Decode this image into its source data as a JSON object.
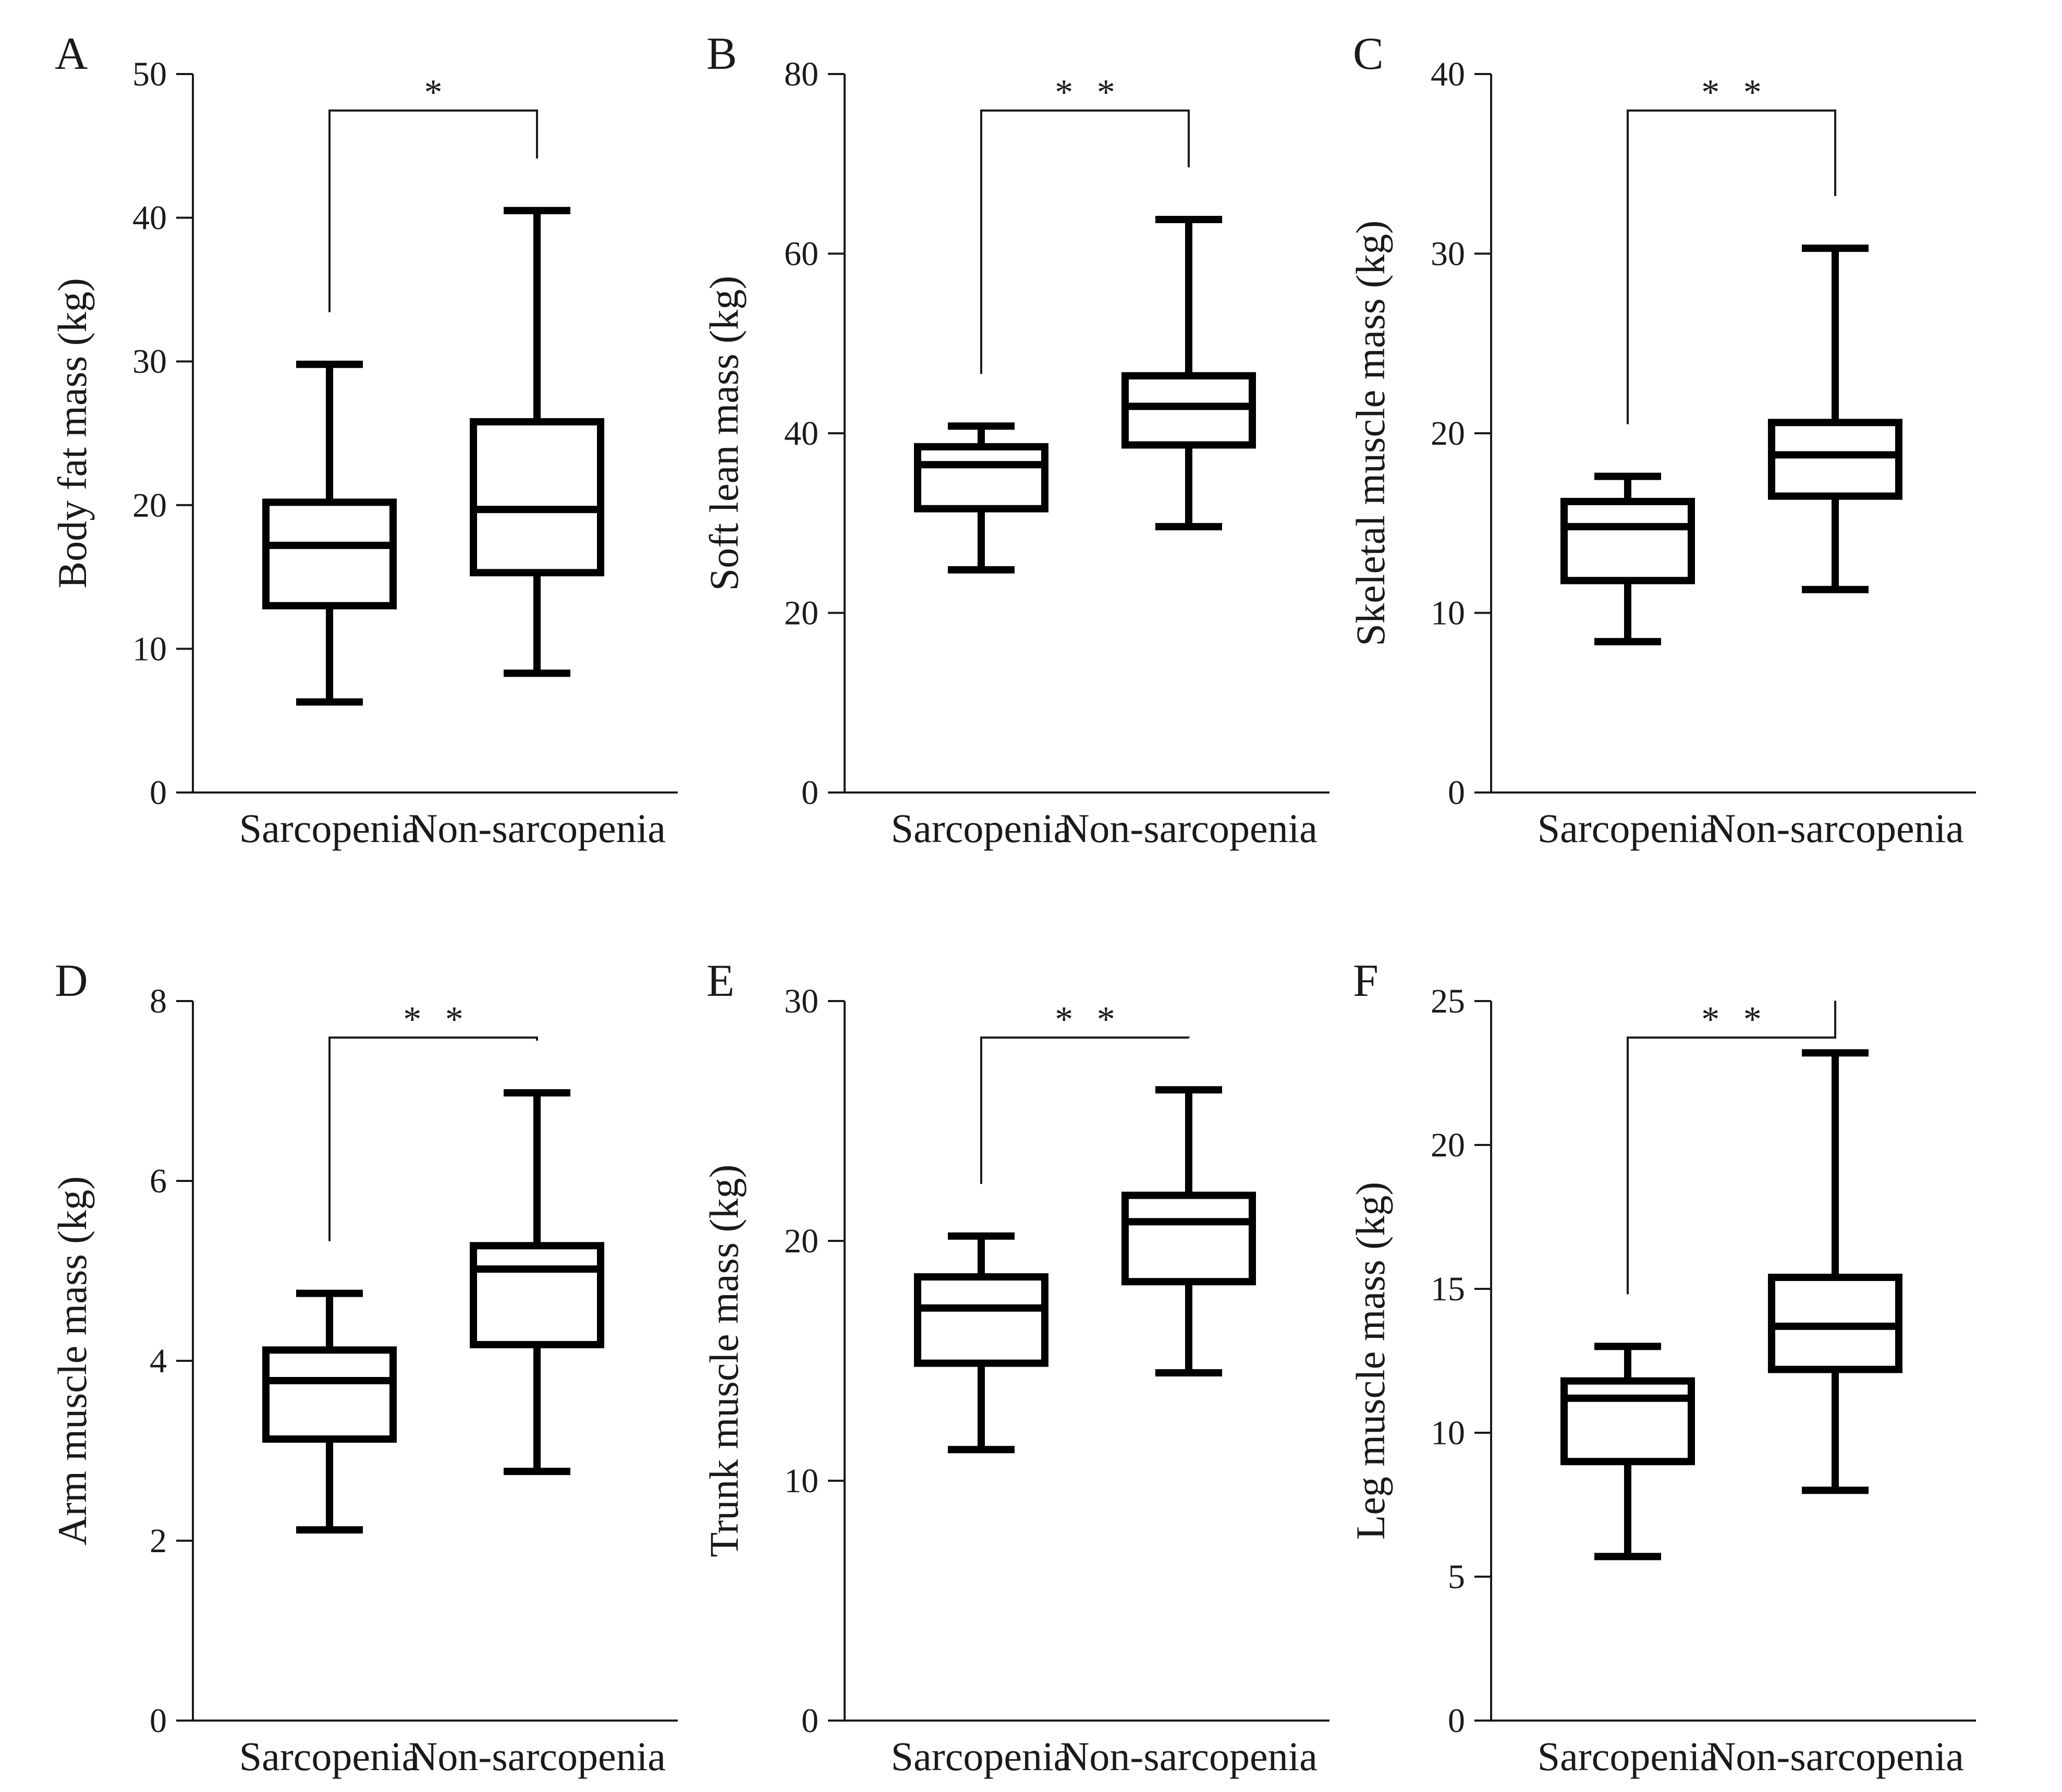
{
  "chart_data": [
    {
      "panel": "A",
      "type": "box",
      "ylabel": "Body fat mass (kg)",
      "categories": [
        "Sarcopenia",
        "Non-sarcopenia"
      ],
      "ylim": [
        0,
        50
      ],
      "yticks": [
        0,
        10,
        20,
        30,
        40,
        50
      ],
      "significance": "*",
      "boxes": [
        {
          "group": "Sarcopenia",
          "min": 6.3,
          "q1": 13.0,
          "median": 17.2,
          "q3": 20.2,
          "max": 29.8
        },
        {
          "group": "Non-sarcopenia",
          "min": 8.3,
          "q1": 15.3,
          "median": 19.7,
          "q3": 25.8,
          "max": 40.5
        }
      ]
    },
    {
      "panel": "B",
      "type": "box",
      "ylabel": "Soft lean mass (kg)",
      "categories": [
        "Sarcopenia",
        "Non-sarcopenia"
      ],
      "ylim": [
        0,
        80
      ],
      "yticks": [
        0,
        20,
        40,
        60,
        80
      ],
      "significance": "**",
      "boxes": [
        {
          "group": "Sarcopenia",
          "min": 24.8,
          "q1": 31.6,
          "median": 36.5,
          "q3": 38.5,
          "max": 40.8
        },
        {
          "group": "Non-sarcopenia",
          "min": 29.6,
          "q1": 38.7,
          "median": 43.0,
          "q3": 46.4,
          "max": 63.8
        }
      ]
    },
    {
      "panel": "C",
      "type": "box",
      "ylabel": "Skeletal muscle mass (kg)",
      "categories": [
        "Sarcopenia",
        "Non-sarcopenia"
      ],
      "ylim": [
        0,
        40
      ],
      "yticks": [
        0,
        10,
        20,
        30,
        40
      ],
      "significance": "**",
      "boxes": [
        {
          "group": "Sarcopenia",
          "min": 8.4,
          "q1": 11.8,
          "median": 14.8,
          "q3": 16.2,
          "max": 17.6
        },
        {
          "group": "Non-sarcopenia",
          "min": 11.3,
          "q1": 16.5,
          "median": 18.8,
          "q3": 20.6,
          "max": 30.3
        }
      ]
    },
    {
      "panel": "D",
      "type": "box",
      "ylabel": "Arm muscle mass (kg)",
      "categories": [
        "Sarcopenia",
        "Non-sarcopenia"
      ],
      "ylim": [
        0,
        8
      ],
      "yticks": [
        0,
        2,
        4,
        6,
        8
      ],
      "significance": "**",
      "boxes": [
        {
          "group": "Sarcopenia",
          "min": 2.12,
          "q1": 3.13,
          "median": 3.78,
          "q3": 4.12,
          "max": 4.75
        },
        {
          "group": "Non-sarcopenia",
          "min": 2.77,
          "q1": 4.18,
          "median": 5.02,
          "q3": 5.28,
          "max": 6.98
        }
      ]
    },
    {
      "panel": "E",
      "type": "box",
      "ylabel": "Trunk muscle mass (kg)",
      "categories": [
        "Sarcopenia",
        "Non-sarcopenia"
      ],
      "ylim": [
        0,
        30
      ],
      "yticks": [
        0,
        10,
        20,
        30
      ],
      "significance": "**",
      "boxes": [
        {
          "group": "Sarcopenia",
          "min": 11.3,
          "q1": 14.9,
          "median": 17.2,
          "q3": 18.5,
          "max": 20.2
        },
        {
          "group": "Non-sarcopenia",
          "min": 14.5,
          "q1": 18.3,
          "median": 20.8,
          "q3": 21.9,
          "max": 26.3
        }
      ]
    },
    {
      "panel": "F",
      "type": "box",
      "ylabel": "Leg muscle mass (kg)",
      "categories": [
        "Sarcopenia",
        "Non-sarcopenia"
      ],
      "ylim": [
        0,
        25
      ],
      "yticks": [
        0,
        5,
        10,
        15,
        20,
        25
      ],
      "significance": "**",
      "boxes": [
        {
          "group": "Sarcopenia",
          "min": 5.7,
          "q1": 9.0,
          "median": 11.2,
          "q3": 11.8,
          "max": 13.0
        },
        {
          "group": "Non-sarcopenia",
          "min": 8.0,
          "q1": 12.2,
          "median": 13.7,
          "q3": 15.4,
          "max": 23.2
        }
      ]
    }
  ]
}
